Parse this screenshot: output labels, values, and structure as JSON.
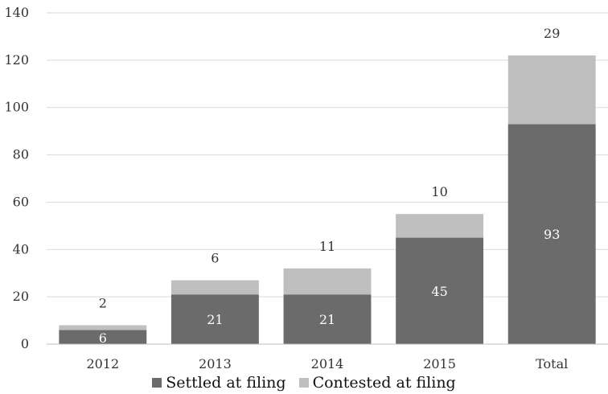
{
  "chart_data": {
    "type": "bar",
    "stacked": true,
    "title": "",
    "xlabel": "",
    "ylabel": "",
    "categories": [
      "2012",
      "2013",
      "2014",
      "2015",
      "Total"
    ],
    "series": [
      {
        "name": "Settled at filing",
        "values": [
          6,
          21,
          21,
          45,
          93
        ],
        "color": "#6b6b6b"
      },
      {
        "name": "Contested at filing",
        "values": [
          2,
          6,
          11,
          10,
          29
        ],
        "color": "#bfbfbf"
      }
    ],
    "yticks": [
      "0",
      "20",
      "40",
      "60",
      "80",
      "100",
      "120",
      "140"
    ],
    "ylim": [
      0,
      140
    ],
    "grid": true,
    "legend_position": "bottom"
  }
}
